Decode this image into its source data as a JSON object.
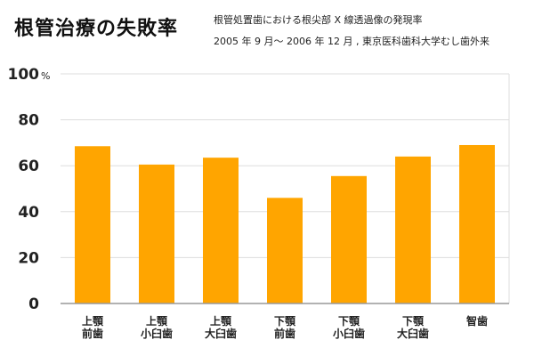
{
  "chart_data": {
    "type": "bar",
    "title": "根管治療の失敗率",
    "subtitle_lines": [
      "根管処置歯における根尖部 X 線透過像の発現率",
      "2005 年 9 月〜 2006 年 12 月 , 東京医科歯科大学むし歯外来"
    ],
    "categories": [
      [
        "上顎",
        "前歯"
      ],
      [
        "上顎",
        "小臼歯"
      ],
      [
        "上顎",
        "大臼歯"
      ],
      [
        "下顎",
        "前歯"
      ],
      [
        "下顎",
        "小臼歯"
      ],
      [
        "下顎",
        "大臼歯"
      ],
      [
        "智歯"
      ]
    ],
    "values": [
      68.5,
      60.5,
      63.5,
      46,
      55.5,
      64,
      69
    ],
    "ylim": [
      0,
      100
    ],
    "yticks": [
      0,
      20,
      40,
      60,
      80,
      100
    ],
    "ytick_labels": [
      "0",
      "20",
      "40",
      "60",
      "80",
      "100"
    ],
    "y_unit": "%",
    "grid": true,
    "bar_color": "#FFA500",
    "grid_color": "#dddddd",
    "axis_color": "#999999"
  }
}
